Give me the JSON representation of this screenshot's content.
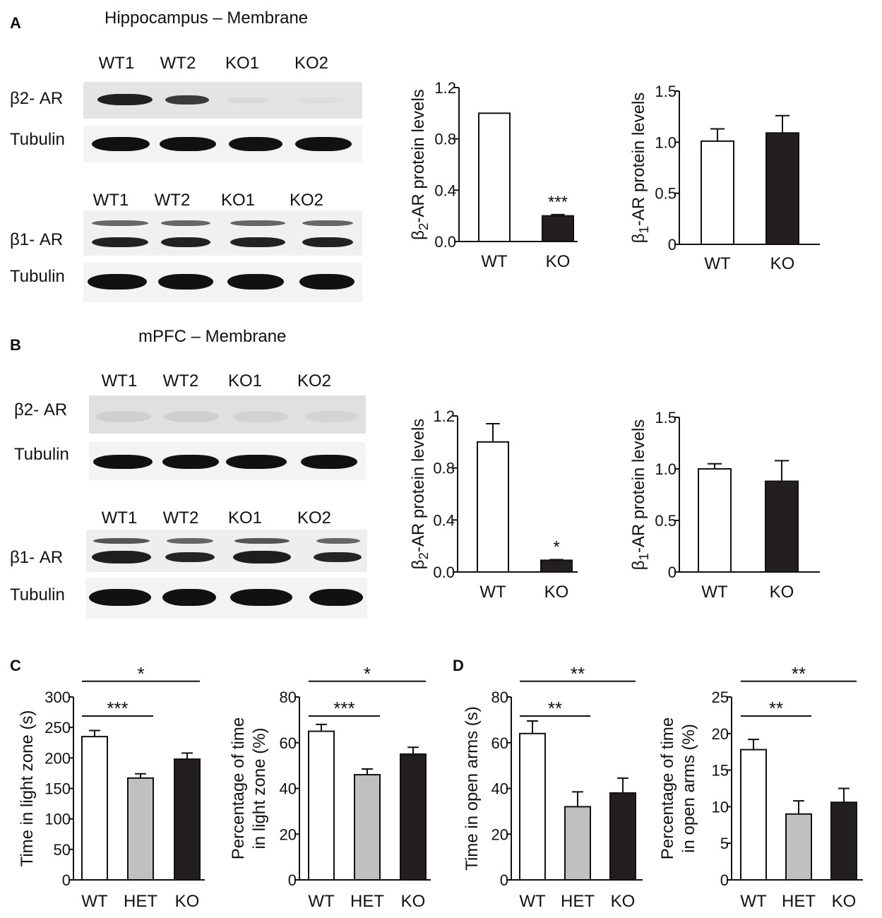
{
  "panels": {
    "A": "A",
    "B": "B",
    "C": "C",
    "D": "D"
  },
  "blots": {
    "A": {
      "title": "Hippocampus – Membrane",
      "top": {
        "lanes": [
          "WT1",
          "WT2",
          "KO1",
          "KO2"
        ],
        "row1": "β2- AR",
        "row2": "Tubulin"
      },
      "bottom": {
        "lanes": [
          "WT1",
          "WT2",
          "KO1",
          "KO2"
        ],
        "row1": "β1- AR",
        "row2": "Tubulin"
      }
    },
    "B": {
      "title": "mPFC – Membrane",
      "top": {
        "lanes": [
          "WT1",
          "WT2",
          "KO1",
          "KO2"
        ],
        "row1": "β2- AR",
        "row2": "Tubulin"
      },
      "bottom": {
        "lanes": [
          "WT1",
          "WT2",
          "KO1",
          "KO2"
        ],
        "row1": "β1- AR",
        "row2": "Tubulin"
      }
    }
  },
  "colors": {
    "wt": "#ffffff",
    "het": "#c0c0c0",
    "ko": "#231f20",
    "axis": "#111111"
  },
  "chart_data": [
    {
      "id": "A_b2",
      "type": "bar",
      "categories": [
        "WT",
        "KO"
      ],
      "values": [
        1.0,
        0.2
      ],
      "errors": [
        0,
        0.01
      ],
      "ylabel": "β2-AR protein levels",
      "ylim": [
        0,
        1.2
      ],
      "yticks": [
        "0.0",
        "0.4",
        "0.8",
        "1.2"
      ],
      "significance": [
        {
          "bar": 1,
          "text": "***"
        }
      ]
    },
    {
      "id": "A_b1",
      "type": "bar",
      "categories": [
        "WT",
        "KO"
      ],
      "values": [
        1.01,
        1.09
      ],
      "errors": [
        0.12,
        0.17
      ],
      "ylabel": "β1-AR protein levels",
      "ylim": [
        0,
        1.5
      ],
      "yticks": [
        "0",
        "0.5",
        "1.0",
        "1.5"
      ]
    },
    {
      "id": "B_b2",
      "type": "bar",
      "categories": [
        "WT",
        "KO"
      ],
      "values": [
        1.0,
        0.09
      ],
      "errors": [
        0.14,
        0.005
      ],
      "ylabel": "β2-AR protein levels",
      "ylim": [
        0,
        1.2
      ],
      "yticks": [
        "0.0",
        "0.4",
        "0.8",
        "1.2"
      ],
      "significance": [
        {
          "bar": 1,
          "text": "*"
        }
      ]
    },
    {
      "id": "B_b1",
      "type": "bar",
      "categories": [
        "WT",
        "KO"
      ],
      "values": [
        1.0,
        0.88
      ],
      "errors": [
        0.05,
        0.2
      ],
      "ylabel": "β1-AR protein levels",
      "ylim": [
        0,
        1.5
      ],
      "yticks": [
        "0",
        "0.5",
        "1.0",
        "1.5"
      ]
    },
    {
      "id": "C_time",
      "type": "bar",
      "categories": [
        "WT",
        "HET",
        "KO"
      ],
      "values": [
        235,
        167,
        198
      ],
      "errors": [
        10,
        7,
        10
      ],
      "ylabel": "Time in light zone (s)",
      "ylim": [
        0,
        300
      ],
      "yticks": [
        "0",
        "50",
        "100",
        "150",
        "200",
        "250",
        "300"
      ],
      "brackets": [
        {
          "from": 0,
          "to": 1,
          "level": 0,
          "text": "***"
        },
        {
          "from": 0,
          "to": 2,
          "level": 1,
          "text": "*"
        }
      ]
    },
    {
      "id": "C_pct",
      "type": "bar",
      "categories": [
        "WT",
        "HET",
        "KO"
      ],
      "values": [
        65,
        46,
        55
      ],
      "errors": [
        3,
        2.5,
        3
      ],
      "ylabel": [
        "Percentage of time",
        "in light zone (%)"
      ],
      "ylim": [
        0,
        80
      ],
      "yticks": [
        "0",
        "20",
        "40",
        "60",
        "80"
      ],
      "brackets": [
        {
          "from": 0,
          "to": 1,
          "level": 0,
          "text": "***"
        },
        {
          "from": 0,
          "to": 2,
          "level": 1,
          "text": "*"
        }
      ]
    },
    {
      "id": "D_time",
      "type": "bar",
      "categories": [
        "WT",
        "HET",
        "KO"
      ],
      "values": [
        64,
        32,
        38
      ],
      "errors": [
        5.5,
        6.5,
        6.5
      ],
      "ylabel": "Time in open arms (s)",
      "ylim": [
        0,
        80
      ],
      "yticks": [
        "0",
        "20",
        "40",
        "60",
        "80"
      ],
      "brackets": [
        {
          "from": 0,
          "to": 1,
          "level": 0,
          "text": "**"
        },
        {
          "from": 0,
          "to": 2,
          "level": 1,
          "text": "**"
        }
      ]
    },
    {
      "id": "D_pct",
      "type": "bar",
      "categories": [
        "WT",
        "HET",
        "KO"
      ],
      "values": [
        17.8,
        9.0,
        10.6
      ],
      "errors": [
        1.4,
        1.8,
        1.9
      ],
      "ylabel": [
        "Percentage of time",
        "in open arms (%)"
      ],
      "ylim": [
        0,
        25
      ],
      "yticks": [
        "0",
        "5",
        "10",
        "15",
        "20",
        "25"
      ],
      "brackets": [
        {
          "from": 0,
          "to": 1,
          "level": 0,
          "text": "**"
        },
        {
          "from": 0,
          "to": 2,
          "level": 1,
          "text": "**"
        }
      ]
    }
  ]
}
